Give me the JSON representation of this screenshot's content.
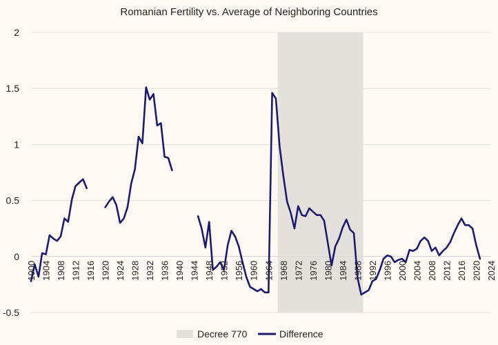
{
  "chart_data": {
    "type": "line",
    "title": "Romanian Fertility vs. Average of Neighboring Countries",
    "xlabel": "",
    "ylabel": "",
    "ylim": [
      -0.5,
      2
    ],
    "xlim": [
      1900,
      2024
    ],
    "yticks": [
      "2",
      "1.5",
      "1",
      "0.5",
      "0",
      "-0.5"
    ],
    "ytick_values": [
      2,
      1.5,
      1,
      0.5,
      0,
      -0.5
    ],
    "xticks": [
      1900,
      1904,
      1908,
      1912,
      1916,
      1920,
      1924,
      1928,
      1932,
      1936,
      1940,
      1944,
      1948,
      1952,
      1956,
      1960,
      1964,
      1968,
      1972,
      1976,
      1980,
      1984,
      1988,
      1992,
      1996,
      2000,
      2004,
      2008,
      2012,
      2016,
      2020,
      2024
    ],
    "xtick_labels": [
      "1900",
      "1904",
      "1908",
      "1912",
      "1916",
      "1920",
      "1924",
      "1928",
      "1932",
      "1936",
      "1940",
      "1944",
      "1948",
      "1952",
      "1956",
      "1960",
      "1964",
      "1968",
      "1972",
      "1976",
      "1980",
      "1984",
      "1988",
      "1992",
      "1996",
      "2000",
      "2004",
      "2008",
      "2012",
      "2016",
      "2020",
      "2024"
    ],
    "shaded_region": {
      "name": "Decree 770",
      "start": 1966.5,
      "end": 1989.5,
      "color": "#e4e0dc"
    },
    "series": [
      {
        "name": "Difference",
        "color": "#1c1a6e",
        "segments": [
          [
            [
              1900,
              -0.22
            ],
            [
              1901,
              -0.07
            ],
            [
              1902,
              -0.18
            ],
            [
              1903,
              0.03
            ],
            [
              1904,
              0.02
            ],
            [
              1905,
              0.19
            ],
            [
              1906,
              0.16
            ],
            [
              1907,
              0.14
            ],
            [
              1908,
              0.18
            ],
            [
              1909,
              0.34
            ],
            [
              1910,
              0.31
            ],
            [
              1911,
              0.51
            ],
            [
              1912,
              0.63
            ],
            [
              1913,
              0.66
            ],
            [
              1914,
              0.69
            ],
            [
              1915,
              0.61
            ]
          ],
          [
            [
              1920,
              0.44
            ],
            [
              1921,
              0.49
            ],
            [
              1922,
              0.53
            ],
            [
              1923,
              0.46
            ],
            [
              1924,
              0.3
            ],
            [
              1925,
              0.34
            ],
            [
              1926,
              0.44
            ],
            [
              1927,
              0.65
            ],
            [
              1928,
              0.78
            ],
            [
              1929,
              1.07
            ],
            [
              1930,
              1.01
            ],
            [
              1931,
              1.51
            ],
            [
              1932,
              1.4
            ],
            [
              1933,
              1.45
            ],
            [
              1934,
              1.17
            ],
            [
              1935,
              1.19
            ],
            [
              1936,
              0.89
            ],
            [
              1937,
              0.88
            ],
            [
              1938,
              0.77
            ]
          ],
          [
            [
              1945,
              0.36
            ],
            [
              1946,
              0.25
            ],
            [
              1947,
              0.08
            ],
            [
              1948,
              0.31
            ],
            [
              1949,
              -0.12
            ],
            [
              1950,
              -0.09
            ],
            [
              1951,
              -0.05
            ],
            [
              1952,
              -0.12
            ],
            [
              1953,
              0.1
            ],
            [
              1954,
              0.23
            ],
            [
              1955,
              0.18
            ],
            [
              1956,
              0.09
            ],
            [
              1957,
              -0.05
            ],
            [
              1958,
              -0.18
            ],
            [
              1959,
              -0.27
            ],
            [
              1960,
              -0.29
            ],
            [
              1961,
              -0.31
            ],
            [
              1962,
              -0.29
            ],
            [
              1963,
              -0.32
            ],
            [
              1964,
              -0.32
            ],
            [
              1965,
              1.46
            ],
            [
              1966,
              1.41
            ],
            [
              1967,
              0.98
            ],
            [
              1968,
              0.72
            ],
            [
              1969,
              0.49
            ],
            [
              1970,
              0.39
            ],
            [
              1971,
              0.25
            ],
            [
              1972,
              0.45
            ],
            [
              1973,
              0.37
            ],
            [
              1974,
              0.36
            ],
            [
              1975,
              0.43
            ],
            [
              1976,
              0.4
            ],
            [
              1977,
              0.37
            ],
            [
              1978,
              0.37
            ],
            [
              1979,
              0.32
            ],
            [
              1980,
              0.12
            ],
            [
              1981,
              -0.08
            ],
            [
              1982,
              0.09
            ],
            [
              1983,
              0.16
            ],
            [
              1984,
              0.26
            ],
            [
              1985,
              0.33
            ],
            [
              1986,
              0.24
            ],
            [
              1987,
              0.21
            ],
            [
              1988,
              -0.19
            ],
            [
              1989,
              -0.34
            ],
            [
              1990,
              -0.32
            ],
            [
              1991,
              -0.3
            ],
            [
              1992,
              -0.22
            ],
            [
              1993,
              -0.2
            ],
            [
              1994,
              -0.12
            ],
            [
              1995,
              -0.02
            ],
            [
              1996,
              0.01
            ],
            [
              1997,
              0.0
            ],
            [
              1998,
              -0.05
            ],
            [
              1999,
              -0.03
            ],
            [
              2000,
              -0.02
            ],
            [
              2001,
              -0.05
            ],
            [
              2002,
              0.06
            ],
            [
              2003,
              0.05
            ],
            [
              2004,
              0.07
            ],
            [
              2005,
              0.14
            ],
            [
              2006,
              0.17
            ],
            [
              2007,
              0.14
            ],
            [
              2008,
              0.05
            ],
            [
              2009,
              0.08
            ],
            [
              2010,
              0.01
            ],
            [
              2011,
              0.05
            ],
            [
              2012,
              0.08
            ],
            [
              2013,
              0.13
            ],
            [
              2014,
              0.21
            ],
            [
              2015,
              0.28
            ],
            [
              2016,
              0.34
            ],
            [
              2017,
              0.28
            ],
            [
              2018,
              0.28
            ],
            [
              2019,
              0.25
            ],
            [
              2020,
              0.1
            ],
            [
              2021,
              -0.02
            ]
          ]
        ]
      }
    ],
    "legend": {
      "position": "bottom-center",
      "items": [
        {
          "label": "Decree 770",
          "kind": "patch",
          "color": "#e4e0dc"
        },
        {
          "label": "Difference",
          "kind": "line",
          "color": "#1c1a6e"
        }
      ]
    }
  }
}
